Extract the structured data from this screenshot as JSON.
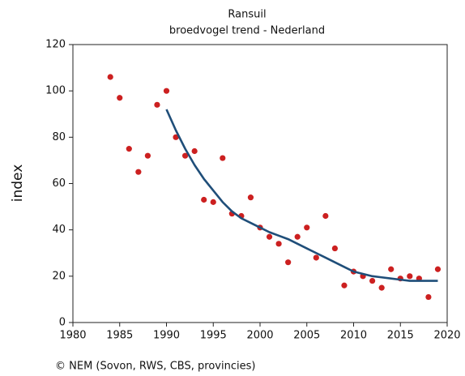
{
  "chart_data": {
    "type": "scatter",
    "title": "Ransuil",
    "subtitle": "broedvogel trend - Nederland",
    "ylabel": "index",
    "footer": "© NEM (Sovon, RWS, CBS, provincies)",
    "xlim": [
      1980,
      2020
    ],
    "xticks": [
      1980,
      1985,
      1990,
      1995,
      2000,
      2005,
      2010,
      2015,
      2020
    ],
    "ylim": [
      0,
      120
    ],
    "yticks": [
      0,
      20,
      40,
      60,
      80,
      100,
      120
    ],
    "grid": false,
    "series": [
      {
        "type": "scatter",
        "color": "#cc2020",
        "x": [
          1984,
          1985,
          1986,
          1987,
          1988,
          1989,
          1990,
          1991,
          1992,
          1993,
          1994,
          1995,
          1996,
          1997,
          1998,
          1999,
          2000,
          2001,
          2002,
          2003,
          2004,
          2005,
          2006,
          2007,
          2008,
          2009,
          2010,
          2011,
          2012,
          2013,
          2014,
          2015,
          2016,
          2017,
          2018,
          2019
        ],
        "values": [
          106,
          97,
          75,
          65,
          72,
          94,
          100,
          80,
          72,
          74,
          53,
          52,
          71,
          47,
          46,
          54,
          41,
          37,
          34,
          26,
          37,
          41,
          28,
          46,
          32,
          16,
          22,
          20,
          18,
          15,
          23,
          19,
          20,
          19,
          11,
          23
        ]
      },
      {
        "type": "line",
        "color": "#1f4e79",
        "x": [
          1990,
          1991,
          1992,
          1993,
          1994,
          1995,
          1996,
          1997,
          1998,
          1999,
          2000,
          2001,
          2002,
          2003,
          2004,
          2005,
          2006,
          2007,
          2008,
          2009,
          2010,
          2011,
          2012,
          2013,
          2014,
          2015,
          2016,
          2017,
          2018,
          2019
        ],
        "values": [
          92,
          83,
          75,
          68,
          62,
          57,
          52,
          48,
          45,
          43,
          41,
          39,
          37.5,
          36,
          34,
          32,
          30,
          28,
          26,
          24,
          22,
          21,
          20,
          19.5,
          19,
          18.5,
          18,
          18,
          18,
          18
        ]
      }
    ]
  }
}
